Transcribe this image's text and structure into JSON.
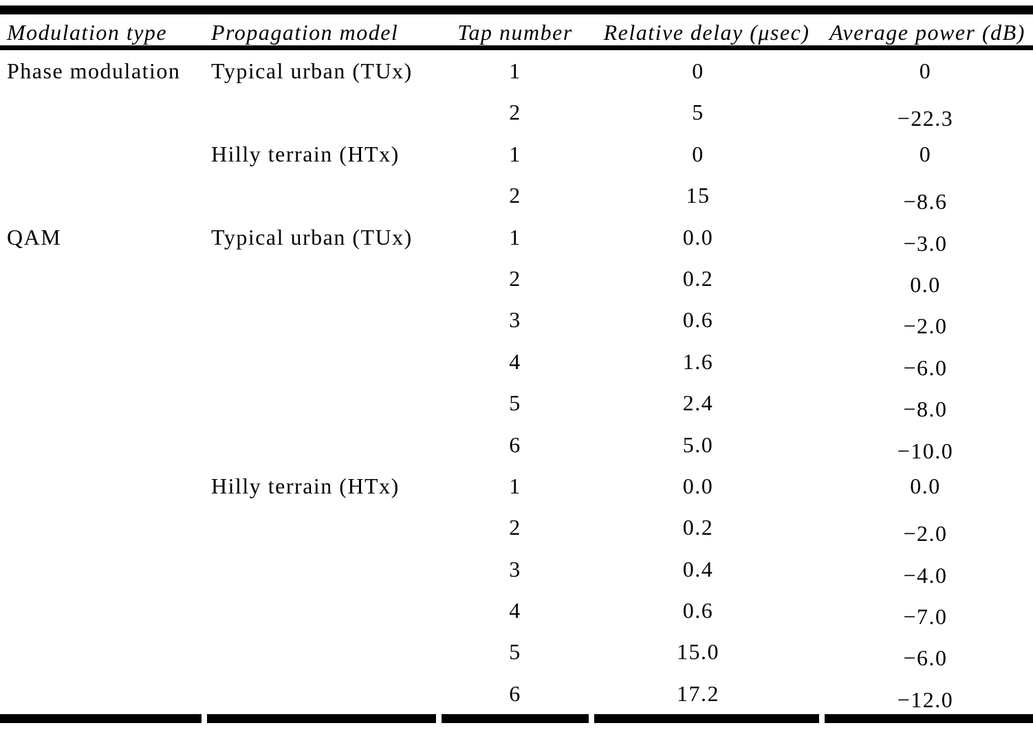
{
  "page": {
    "background_color": "#ffffff",
    "text_color": "#000000",
    "rule_color": "#000000"
  },
  "table": {
    "headers": [
      "Modulation type",
      "Propagation model",
      "Tap number",
      "Relative delay (μsec)",
      "Average power (dB)"
    ],
    "rows": [
      {
        "modulation": "Phase modulation",
        "model": "Typical urban (TUx)",
        "tap": "1",
        "delay": "0",
        "power": "0",
        "power_shift": false
      },
      {
        "modulation": "",
        "model": "",
        "tap": "2",
        "delay": "5",
        "power": "−22.3",
        "power_shift": true
      },
      {
        "modulation": "",
        "model": "Hilly terrain (HTx)",
        "tap": "1",
        "delay": "0",
        "power": "0",
        "power_shift": false
      },
      {
        "modulation": "",
        "model": "",
        "tap": "2",
        "delay": "15",
        "power": "−8.6",
        "power_shift": true
      },
      {
        "modulation": "QAM",
        "model": "Typical urban (TUx)",
        "tap": "1",
        "delay": "0.0",
        "power": "−3.0",
        "power_shift": true
      },
      {
        "modulation": "",
        "model": "",
        "tap": "2",
        "delay": "0.2",
        "power": "0.0",
        "power_shift": true
      },
      {
        "modulation": "",
        "model": "",
        "tap": "3",
        "delay": "0.6",
        "power": "−2.0",
        "power_shift": true
      },
      {
        "modulation": "",
        "model": "",
        "tap": "4",
        "delay": "1.6",
        "power": "−6.0",
        "power_shift": true
      },
      {
        "modulation": "",
        "model": "",
        "tap": "5",
        "delay": "2.4",
        "power": "−8.0",
        "power_shift": true
      },
      {
        "modulation": "",
        "model": "",
        "tap": "6",
        "delay": "5.0",
        "power": "−10.0",
        "power_shift": true
      },
      {
        "modulation": "",
        "model": "Hilly terrain (HTx)",
        "tap": "1",
        "delay": "0.0",
        "power": "0.0",
        "power_shift": false
      },
      {
        "modulation": "",
        "model": "",
        "tap": "2",
        "delay": "0.2",
        "power": "−2.0",
        "power_shift": true
      },
      {
        "modulation": "",
        "model": "",
        "tap": "3",
        "delay": "0.4",
        "power": "−4.0",
        "power_shift": true
      },
      {
        "modulation": "",
        "model": "",
        "tap": "4",
        "delay": "0.6",
        "power": "−7.0",
        "power_shift": true
      },
      {
        "modulation": "",
        "model": "",
        "tap": "5",
        "delay": "15.0",
        "power": "−6.0",
        "power_shift": true
      },
      {
        "modulation": "",
        "model": "",
        "tap": "6",
        "delay": "17.2",
        "power": "−12.0",
        "power_shift": true
      }
    ]
  }
}
